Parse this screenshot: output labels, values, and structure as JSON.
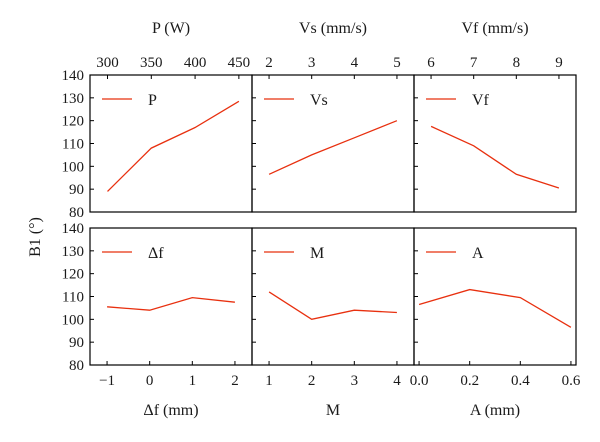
{
  "figure": {
    "ylabel": "B1 (°)"
  },
  "style": {
    "line_color": "#e8300f"
  },
  "chart_data": [
    {
      "type": "line",
      "series": [
        {
          "name": "P",
          "x": [
            300,
            350,
            400,
            450
          ],
          "y": [
            89,
            108,
            117,
            128.5
          ]
        }
      ],
      "xlabel": "P (W)",
      "ylabel": "B1 (°)",
      "xlim": [
        280,
        465
      ],
      "ylim": [
        80,
        140
      ],
      "xticks": [
        300,
        350,
        400,
        450
      ],
      "yticks": [
        80,
        90,
        100,
        110,
        120,
        130,
        140
      ]
    },
    {
      "type": "line",
      "series": [
        {
          "name": "Vs",
          "x": [
            2,
            3,
            4,
            5
          ],
          "y": [
            96.5,
            105,
            112.5,
            120
          ]
        }
      ],
      "xlabel": "Vs (mm/s)",
      "ylabel": "B1 (°)",
      "xlim": [
        1.6,
        5.4
      ],
      "ylim": [
        80,
        140
      ],
      "xticks": [
        2,
        3,
        4,
        5
      ],
      "yticks": [
        80,
        90,
        100,
        110,
        120,
        130,
        140
      ]
    },
    {
      "type": "line",
      "series": [
        {
          "name": "Vf",
          "x": [
            6,
            7,
            8,
            9
          ],
          "y": [
            117.5,
            109,
            96.5,
            90.5
          ]
        }
      ],
      "xlabel": "Vf (mm/s)",
      "ylabel": "B1 (°)",
      "xlim": [
        5.6,
        9.4
      ],
      "ylim": [
        80,
        140
      ],
      "xticks": [
        6,
        7,
        8,
        9
      ],
      "yticks": [
        80,
        90,
        100,
        110,
        120,
        130,
        140
      ]
    },
    {
      "type": "line",
      "series": [
        {
          "name": "Δf",
          "x": [
            -1,
            0,
            1,
            2
          ],
          "y": [
            105.5,
            104,
            109.5,
            107.5
          ]
        }
      ],
      "xlabel": "Δf (mm)",
      "ylabel": "B1 (°)",
      "xlim": [
        -1.4,
        2.4
      ],
      "ylim": [
        80,
        140
      ],
      "xticks": [
        -1,
        0,
        1,
        2
      ],
      "xtick_labels": [
        "−1",
        "0",
        "1",
        "2"
      ],
      "yticks": [
        80,
        90,
        100,
        110,
        120,
        130,
        140
      ]
    },
    {
      "type": "line",
      "series": [
        {
          "name": "M",
          "x": [
            1,
            2,
            3,
            4
          ],
          "y": [
            112,
            100,
            104,
            103
          ]
        }
      ],
      "xlabel": "M",
      "ylabel": "B1 (°)",
      "xlim": [
        0.6,
        4.4
      ],
      "ylim": [
        80,
        140
      ],
      "xticks": [
        1,
        2,
        3,
        4
      ],
      "yticks": [
        80,
        90,
        100,
        110,
        120,
        130,
        140
      ]
    },
    {
      "type": "line",
      "series": [
        {
          "name": "A",
          "x": [
            0.0,
            0.2,
            0.4,
            0.6
          ],
          "y": [
            106.5,
            113,
            109.5,
            96.5
          ]
        }
      ],
      "xlabel": "A (mm)",
      "ylabel": "B1 (°)",
      "xlim": [
        -0.02,
        0.62
      ],
      "ylim": [
        80,
        140
      ],
      "xticks": [
        0.0,
        0.2,
        0.4,
        0.6
      ],
      "xtick_labels": [
        "0.0",
        "0.2",
        "0.4",
        "0.6"
      ],
      "yticks": [
        80,
        90,
        100,
        110,
        120,
        130,
        140
      ]
    }
  ]
}
